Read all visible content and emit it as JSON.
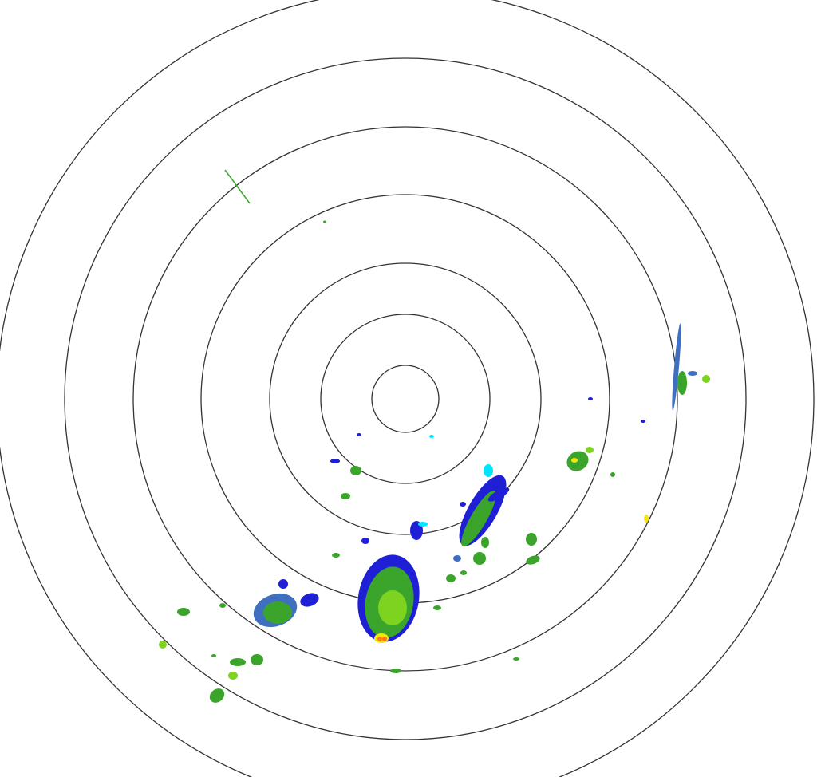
{
  "radar": {
    "range_ring_count": 7,
    "colors": {
      "ring": "#333333",
      "background": "#ffffff",
      "very_light": "#00e5ff",
      "light": "#1f1fd6",
      "light_moderate": "#3f6fbf",
      "moderate": "#3aa52a",
      "moderate_strong": "#7ed321",
      "strong": "#f5e60a",
      "very_strong": "#ff7a1a"
    }
  }
}
